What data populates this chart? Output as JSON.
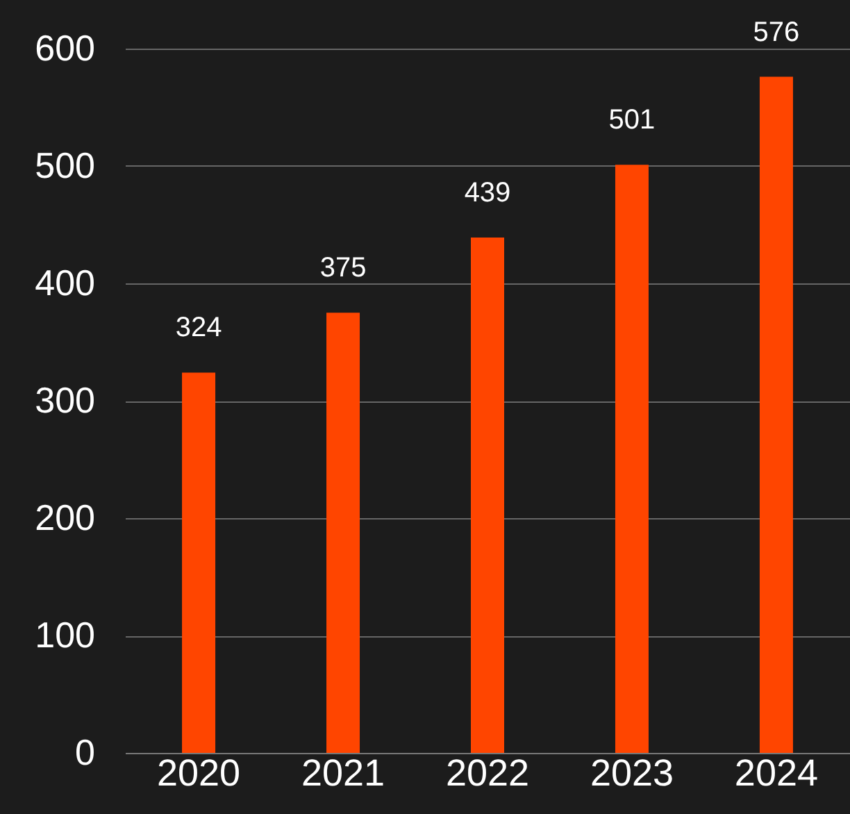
{
  "chart_data": {
    "type": "bar",
    "categories": [
      "2020",
      "2021",
      "2022",
      "2023",
      "2024"
    ],
    "values": [
      324,
      375,
      439,
      501,
      576
    ],
    "color": "#ff4500",
    "ylim": [
      0,
      600
    ],
    "yticks": [
      0,
      100,
      200,
      300,
      400,
      500,
      600
    ],
    "grid": "y",
    "data_labels": true
  }
}
